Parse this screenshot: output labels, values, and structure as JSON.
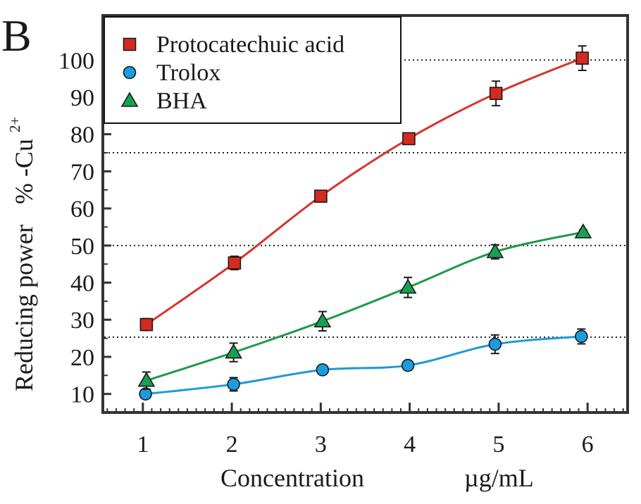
{
  "panel_label": "B",
  "chart_data": {
    "type": "line",
    "title": "",
    "xlabel": "Concentration",
    "xunit": "µg/mL",
    "ylabel": "Reducing power",
    "yunit": "% -Cu",
    "yunit_superscript": "2+",
    "xlim": [
      0.55,
      6.45
    ],
    "ylim": [
      5,
      112
    ],
    "xticks": [
      1,
      2,
      3,
      4,
      5,
      6
    ],
    "yticks": [
      10,
      20,
      30,
      40,
      50,
      60,
      70,
      80,
      90,
      100
    ],
    "reference_lines": [
      25.3,
      50,
      75,
      100
    ],
    "legend_position": "top-left",
    "series": [
      {
        "name": "Protocatechuic acid",
        "marker": "square",
        "color": "#d52a20",
        "line_color": "#d8322a",
        "x": [
          1.04,
          2.03,
          3.0,
          3.99,
          4.97,
          5.94
        ],
        "y": [
          28.7,
          45.3,
          63.3,
          78.8,
          91.0,
          100.5
        ],
        "err": [
          1.6,
          1.8,
          1.0,
          1.0,
          3.3,
          3.3
        ]
      },
      {
        "name": "Trolox",
        "marker": "circle",
        "color": "#1b9be0",
        "line_color": "#1d9ad8",
        "x": [
          1.03,
          2.02,
          3.02,
          3.98,
          4.96,
          5.93
        ],
        "y": [
          10.0,
          12.6,
          16.5,
          17.7,
          23.4,
          25.5
        ],
        "err": [
          0.9,
          1.8,
          0.8,
          0.7,
          2.5,
          2.0
        ]
      },
      {
        "name": "BHA",
        "marker": "triangle",
        "color": "#18a052",
        "line_color": "#1f9a46",
        "x": [
          1.04,
          2.02,
          3.02,
          3.98,
          4.96,
          5.95
        ],
        "y": [
          13.6,
          21.2,
          29.6,
          38.7,
          48.3,
          53.6
        ],
        "err": [
          2.3,
          2.5,
          2.6,
          2.7,
          1.9,
          0.6
        ]
      }
    ]
  }
}
